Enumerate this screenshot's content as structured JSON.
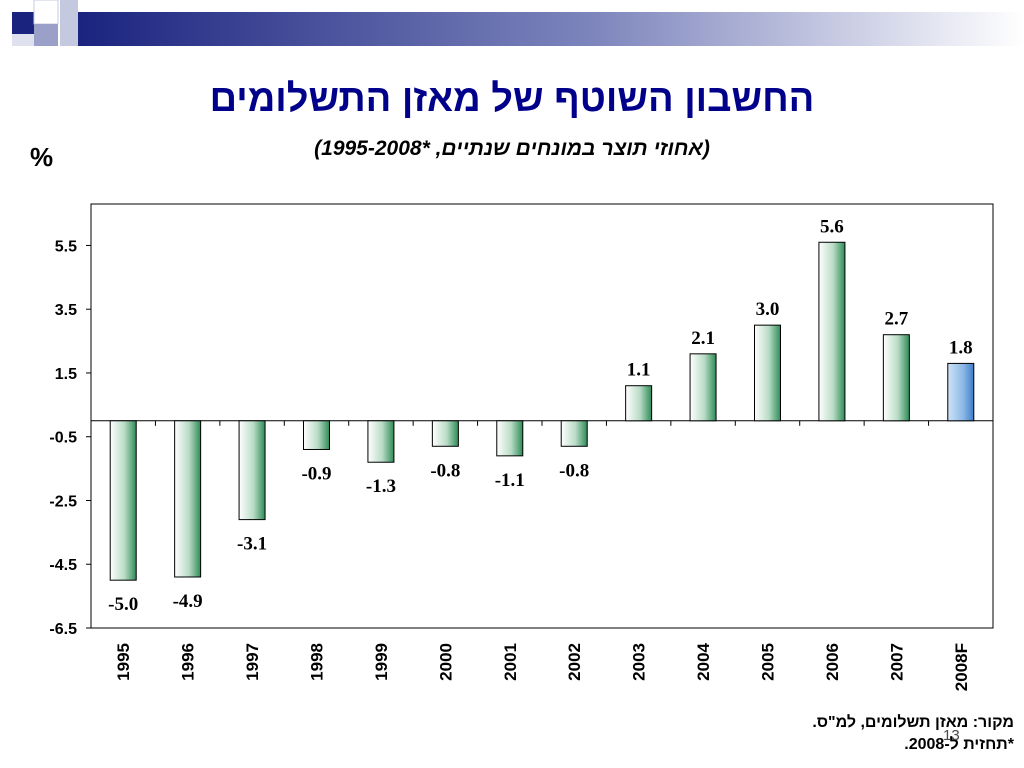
{
  "slide": {
    "title": "החשבון השוטף של מאזן התשלומים",
    "subtitle": "(אחוזי תוצר במונחים שנתיים, *1995-2008)",
    "unit_label": "%",
    "source_line": "מקור: מאזן תשלומים, למ\"ס.",
    "forecast_note": "*תחזית ל-2008.",
    "page_number": "13"
  },
  "colors": {
    "title": "#00008B",
    "bar_green": "#2E8B57",
    "bar_blue": "#6FA8DC",
    "banner_dark": "#1a237e"
  },
  "chart_data": {
    "type": "bar",
    "categories": [
      "1995",
      "1996",
      "1997",
      "1998",
      "1999",
      "2000",
      "2001",
      "2002",
      "2003",
      "2004",
      "2005",
      "2006",
      "2007",
      "2008F"
    ],
    "values": [
      -5.0,
      -4.9,
      -3.1,
      -0.9,
      -1.3,
      -0.8,
      -1.1,
      -0.8,
      1.1,
      2.1,
      3.0,
      5.6,
      2.7,
      1.8
    ],
    "labels": [
      "-5.0",
      "-4.9",
      "-3.1",
      "-0.9",
      "-1.3",
      "-0.8",
      "-1.1",
      "-0.8",
      "1.1",
      "2.1",
      "3.0",
      "5.6",
      "2.7",
      "1.8"
    ],
    "highlight_category": "2008F",
    "ylim": [
      -6.5,
      6.8
    ],
    "yticks": [
      5.5,
      3.5,
      1.5,
      -0.5,
      -2.5,
      -4.5,
      -6.5
    ],
    "ytick_labels": [
      "5.5",
      "3.5",
      "1.5",
      "-0.5",
      "-2.5",
      "-4.5",
      "-6.5"
    ],
    "grid": false,
    "legend": "none"
  }
}
